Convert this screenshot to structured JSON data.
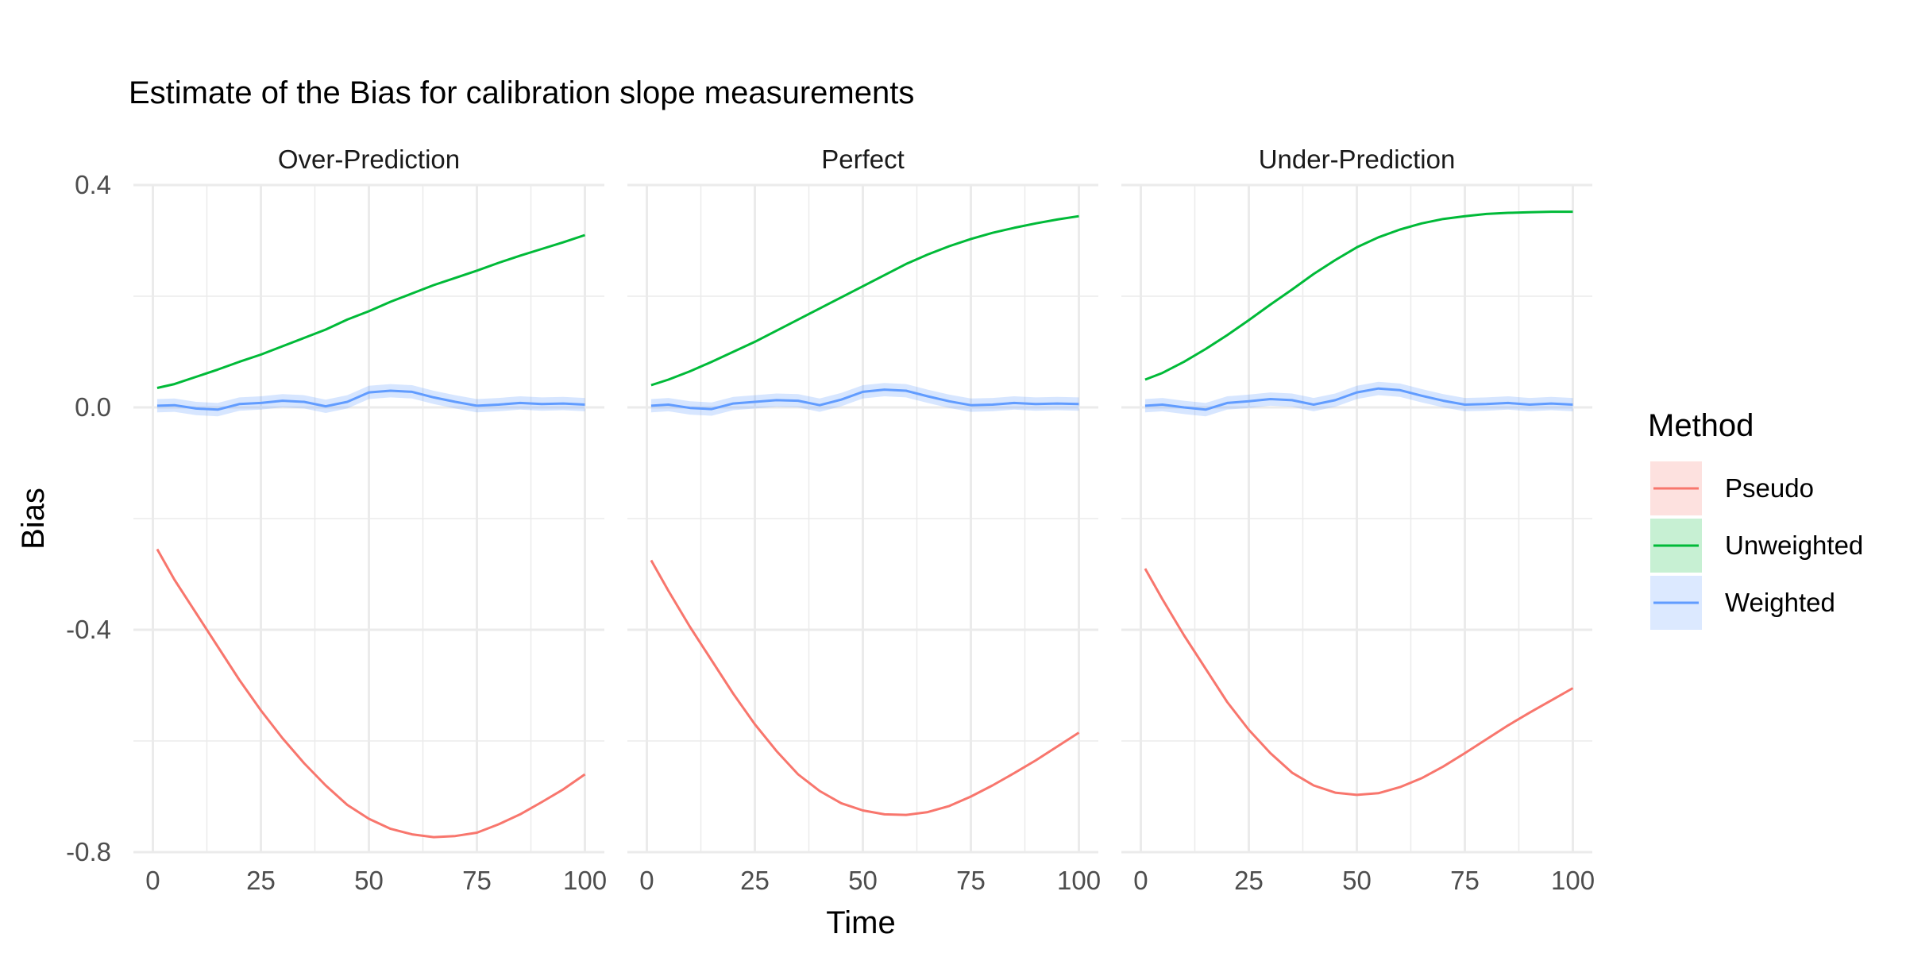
{
  "chart_data": {
    "type": "line",
    "title": "Estimate of the Bias for calibration slope measurements",
    "xlabel": "Time",
    "ylabel": "Bias",
    "xlim": [
      0,
      100
    ],
    "ylim": [
      -0.8,
      0.4
    ],
    "x_ticks": [
      0,
      25,
      50,
      75,
      100
    ],
    "x_tick_labels": [
      "0",
      "25",
      "50",
      "75",
      "100"
    ],
    "y_ticks": [
      -0.8,
      -0.4,
      0.0,
      0.4
    ],
    "y_tick_labels": [
      "-0.8",
      "-0.4",
      "0.0",
      "0.4"
    ],
    "grid": true,
    "legend": {
      "title": "Method",
      "position": "right",
      "entries": [
        {
          "name": "Pseudo",
          "color": "#F8766D"
        },
        {
          "name": "Unweighted",
          "color": "#00BA38"
        },
        {
          "name": "Weighted",
          "color": "#619CFF"
        }
      ]
    },
    "x": [
      1,
      5,
      10,
      15,
      20,
      25,
      30,
      35,
      40,
      45,
      50,
      55,
      60,
      65,
      70,
      75,
      80,
      85,
      90,
      95,
      100
    ],
    "panels": [
      {
        "name": "Over-Prediction",
        "series": [
          {
            "name": "Pseudo",
            "values": [
              -0.255,
              -0.31,
              -0.37,
              -0.43,
              -0.49,
              -0.545,
              -0.595,
              -0.64,
              -0.68,
              -0.715,
              -0.74,
              -0.758,
              -0.768,
              -0.773,
              -0.771,
              -0.765,
              -0.75,
              -0.732,
              -0.71,
              -0.687,
              -0.66
            ]
          },
          {
            "name": "Unweighted",
            "values": [
              0.035,
              0.042,
              0.055,
              0.068,
              0.082,
              0.095,
              0.11,
              0.125,
              0.14,
              0.158,
              0.173,
              0.19,
              0.205,
              0.22,
              0.233,
              0.246,
              0.26,
              0.273,
              0.285,
              0.297,
              0.31
            ]
          },
          {
            "name": "Weighted",
            "values": [
              0.003,
              0.004,
              -0.002,
              -0.004,
              0.006,
              0.008,
              0.012,
              0.01,
              0.002,
              0.01,
              0.027,
              0.03,
              0.028,
              0.018,
              0.01,
              0.003,
              0.005,
              0.008,
              0.006,
              0.007,
              0.005
            ]
          }
        ]
      },
      {
        "name": "Perfect",
        "series": [
          {
            "name": "Pseudo",
            "values": [
              -0.275,
              -0.33,
              -0.395,
              -0.455,
              -0.515,
              -0.57,
              -0.618,
              -0.66,
              -0.69,
              -0.712,
              -0.725,
              -0.732,
              -0.733,
              -0.728,
              -0.717,
              -0.7,
              -0.68,
              -0.658,
              -0.635,
              -0.61,
              -0.585
            ]
          },
          {
            "name": "Unweighted",
            "values": [
              0.04,
              0.05,
              0.065,
              0.082,
              0.1,
              0.118,
              0.138,
              0.158,
              0.178,
              0.198,
              0.218,
              0.238,
              0.258,
              0.275,
              0.29,
              0.303,
              0.314,
              0.323,
              0.331,
              0.338,
              0.344
            ]
          },
          {
            "name": "Weighted",
            "values": [
              0.003,
              0.005,
              -0.001,
              -0.003,
              0.007,
              0.01,
              0.013,
              0.012,
              0.004,
              0.014,
              0.028,
              0.032,
              0.03,
              0.02,
              0.011,
              0.004,
              0.005,
              0.008,
              0.006,
              0.007,
              0.006
            ]
          }
        ]
      },
      {
        "name": "Under-Prediction",
        "series": [
          {
            "name": "Pseudo",
            "values": [
              -0.29,
              -0.345,
              -0.41,
              -0.47,
              -0.53,
              -0.58,
              -0.622,
              -0.657,
              -0.68,
              -0.693,
              -0.697,
              -0.694,
              -0.683,
              -0.667,
              -0.646,
              -0.622,
              -0.597,
              -0.572,
              -0.549,
              -0.527,
              -0.505
            ]
          },
          {
            "name": "Unweighted",
            "values": [
              0.05,
              0.062,
              0.082,
              0.105,
              0.13,
              0.157,
              0.185,
              0.212,
              0.24,
              0.265,
              0.288,
              0.306,
              0.32,
              0.331,
              0.339,
              0.344,
              0.348,
              0.35,
              0.351,
              0.352,
              0.352
            ]
          },
          {
            "name": "Weighted",
            "values": [
              0.003,
              0.005,
              0.0,
              -0.004,
              0.008,
              0.011,
              0.015,
              0.013,
              0.005,
              0.013,
              0.027,
              0.034,
              0.031,
              0.021,
              0.012,
              0.005,
              0.006,
              0.008,
              0.005,
              0.007,
              0.005
            ]
          }
        ]
      }
    ]
  }
}
